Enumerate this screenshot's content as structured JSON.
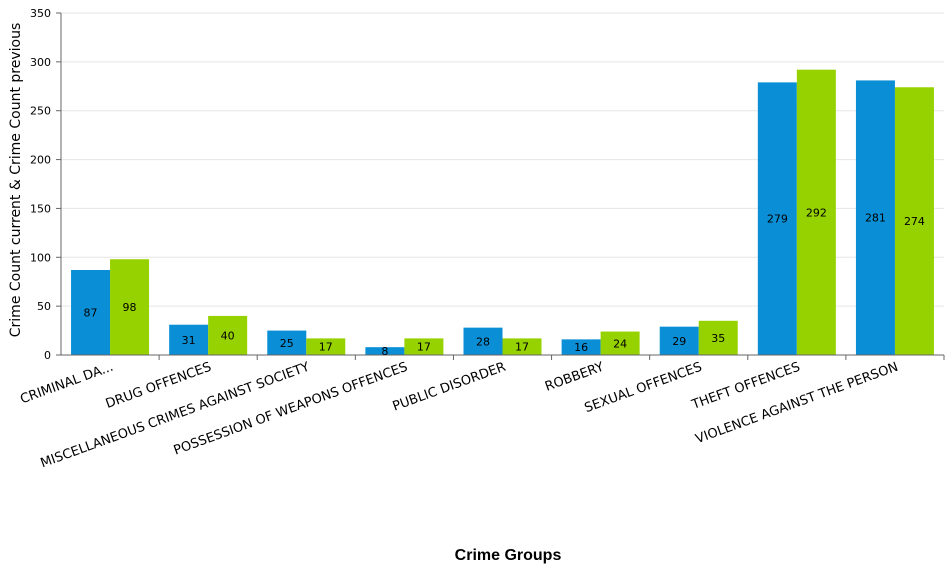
{
  "chart_data": {
    "type": "bar",
    "categories": [
      "CRIMINAL DA...",
      "DRUG OFFENCES",
      "MISCELLANEOUS CRIMES AGAINST SOCIETY",
      "POSSESSION OF WEAPONS OFFENCES",
      "PUBLIC DISORDER",
      "ROBBERY",
      "SEXUAL OFFENCES",
      "THEFT OFFENCES",
      "VIOLENCE AGAINST THE PERSON"
    ],
    "series": [
      {
        "values": [
          87,
          31,
          25,
          8,
          28,
          16,
          29,
          279,
          281
        ],
        "color": "#0a8fd6"
      },
      {
        "values": [
          98,
          40,
          17,
          17,
          17,
          24,
          35,
          292,
          274
        ],
        "color": "#96d100"
      }
    ],
    "xlabel": "Crime Groups",
    "ylabel": "Crime Count current & Crime Count previous",
    "ylim": [
      0,
      350
    ],
    "yticks": [
      0,
      50,
      100,
      150,
      200,
      250,
      300,
      350
    ],
    "grid": true,
    "legend": "none",
    "data_labels": true
  }
}
